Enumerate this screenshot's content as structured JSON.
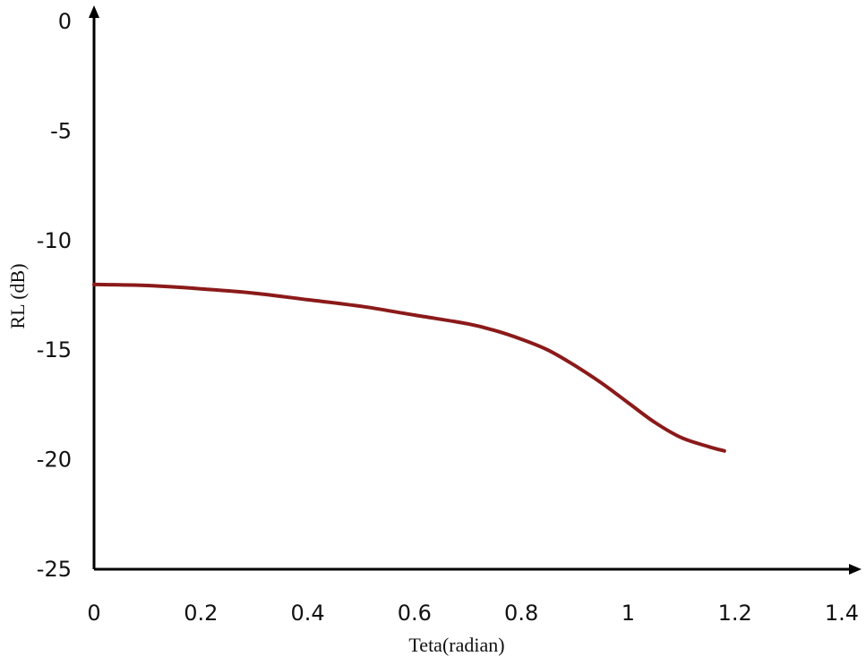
{
  "chart_data": {
    "type": "line",
    "title": "",
    "xlabel": "Teta(radian)",
    "ylabel": "RL (dB)",
    "xlim": [
      0,
      1.4
    ],
    "ylim": [
      -25,
      0
    ],
    "x_ticks": [
      "0",
      "0.2",
      "0.4",
      "0.6",
      "0.8",
      "1",
      "1.2",
      "1.4"
    ],
    "y_ticks": [
      "0",
      "-5",
      "-10",
      "-15",
      "-20",
      "-25"
    ],
    "grid": false,
    "legend": "none",
    "series": [
      {
        "color": "#8b1a1a",
        "x": [
          0,
          0.1,
          0.2,
          0.3,
          0.4,
          0.5,
          0.6,
          0.7,
          0.75,
          0.8,
          0.85,
          0.9,
          0.95,
          1.0,
          1.05,
          1.1,
          1.15,
          1.18
        ],
        "y": [
          -12.0,
          -12.05,
          -12.2,
          -12.4,
          -12.7,
          -13.0,
          -13.4,
          -13.8,
          -14.1,
          -14.5,
          -15.0,
          -15.7,
          -16.5,
          -17.4,
          -18.3,
          -19.0,
          -19.4,
          -19.6
        ]
      }
    ]
  }
}
